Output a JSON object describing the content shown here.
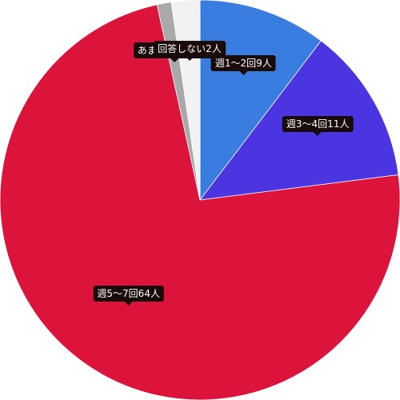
{
  "chart_data": {
    "type": "pie",
    "slices": [
      {
        "label": "週1〜2回9人",
        "value": 9,
        "color": "#3a7de0"
      },
      {
        "label": "週3〜4回11人",
        "value": 11,
        "color": "#4a35e0"
      },
      {
        "label": "週5〜7回64人",
        "value": 64,
        "color": "#dc143c"
      },
      {
        "label": "あまりしない1人",
        "value": 1,
        "color": "#a9a9a9"
      },
      {
        "label": "回答しない2人",
        "value": 2,
        "color": "#f2f2f2"
      }
    ],
    "start_angle_deg": 0,
    "direction": "clockwise"
  }
}
